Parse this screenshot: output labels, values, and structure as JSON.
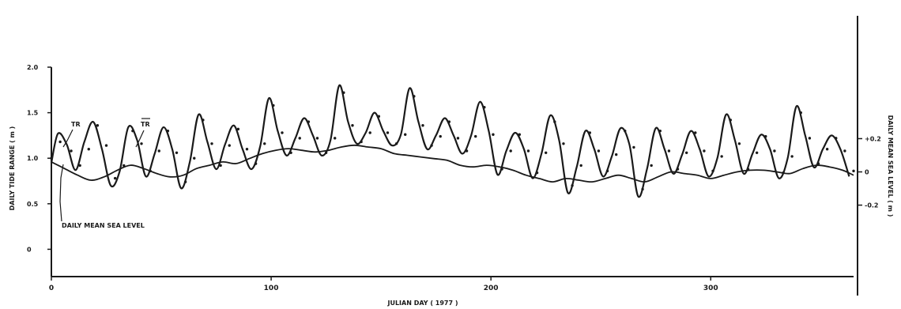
{
  "chart_data": {
    "type": "line",
    "title": "",
    "xlabel": "JULIAN DAY ( 1977 )",
    "ylabel_left": "DAILY TIDE RANGE ( m )",
    "ylabel_right": "DAILY MEAN SEA LEVEL ( m )",
    "xlim": [
      0,
      365
    ],
    "ylim_left": [
      -0.3,
      2.0
    ],
    "ylim_right": [
      -0.63,
      0.63
    ],
    "x_ticks": [
      0,
      100,
      200,
      300
    ],
    "x_tick_labels": [
      "0",
      "100",
      "200",
      "300"
    ],
    "y_left_ticks": [
      0,
      0.5,
      1.0,
      1.5,
      2.0
    ],
    "y_left_tick_labels": [
      "0",
      "0.5",
      "1.0",
      "1.5",
      "2.0"
    ],
    "y_right_ticks": [
      0.2,
      0,
      -0.2
    ],
    "y_right_tick_labels": [
      "+0.2",
      "0",
      "-0.2"
    ],
    "grid": false,
    "annotations": [
      {
        "text": "TR",
        "x": 4,
        "y": 1.4
      },
      {
        "text": "TR",
        "x": 40,
        "y": 1.4,
        "overline": true
      },
      {
        "text": "DAILY MEAN SEA LEVEL",
        "x": 8,
        "y": 0.47
      }
    ],
    "series": [
      {
        "name": "TR",
        "style": "solid",
        "axis": "left",
        "x": [
          0,
          3,
          7,
          11,
          15,
          19,
          23,
          27,
          31,
          35,
          39,
          43,
          47,
          51,
          55,
          59,
          63,
          67,
          71,
          75,
          79,
          83,
          87,
          91,
          95,
          99,
          103,
          107,
          111,
          115,
          119,
          123,
          127,
          131,
          135,
          139,
          143,
          147,
          151,
          155,
          159,
          163,
          167,
          171,
          175,
          179,
          183,
          187,
          191,
          195,
          199,
          203,
          207,
          211,
          215,
          219,
          223,
          227,
          231,
          235,
          239,
          243,
          247,
          251,
          255,
          259,
          263,
          267,
          271,
          275,
          279,
          283,
          287,
          291,
          295,
          299,
          303,
          307,
          311,
          315,
          319,
          323,
          327,
          331,
          335,
          339,
          343,
          347,
          351,
          355,
          359,
          363
        ],
        "y": [
          0.95,
          1.27,
          1.15,
          0.87,
          1.18,
          1.4,
          1.1,
          0.7,
          0.85,
          1.34,
          1.2,
          0.8,
          1.05,
          1.34,
          1.1,
          0.67,
          0.96,
          1.48,
          1.18,
          0.88,
          1.15,
          1.36,
          1.1,
          0.88,
          1.13,
          1.66,
          1.3,
          1.03,
          1.22,
          1.44,
          1.25,
          1.03,
          1.2,
          1.8,
          1.4,
          1.16,
          1.28,
          1.5,
          1.3,
          1.14,
          1.26,
          1.77,
          1.4,
          1.1,
          1.25,
          1.44,
          1.25,
          1.05,
          1.25,
          1.62,
          1.3,
          0.82,
          1.08,
          1.28,
          1.1,
          0.78,
          1.05,
          1.47,
          1.2,
          0.62,
          0.9,
          1.3,
          1.1,
          0.8,
          1.02,
          1.33,
          1.15,
          0.58,
          0.88,
          1.33,
          1.1,
          0.83,
          1.04,
          1.3,
          1.1,
          0.8,
          1.0,
          1.48,
          1.2,
          0.83,
          1.05,
          1.26,
          1.1,
          0.78,
          1.0,
          1.57,
          1.25,
          0.9,
          1.1,
          1.25,
          1.1,
          0.8
        ]
      },
      {
        "name": "TR (mean)",
        "style": "dotted",
        "axis": "left",
        "x": [
          0,
          4,
          9,
          13,
          17,
          21,
          25,
          29,
          33,
          37,
          41,
          45,
          49,
          53,
          57,
          61,
          65,
          69,
          73,
          77,
          81,
          85,
          89,
          93,
          97,
          101,
          105,
          109,
          113,
          117,
          121,
          125,
          129,
          133,
          137,
          141,
          145,
          149,
          153,
          157,
          161,
          165,
          169,
          173,
          177,
          181,
          185,
          189,
          193,
          197,
          201,
          205,
          209,
          213,
          217,
          221,
          225,
          229,
          233,
          237,
          241,
          245,
          249,
          253,
          257,
          261,
          265,
          269,
          273,
          277,
          281,
          285,
          289,
          293,
          297,
          301,
          305,
          309,
          313,
          317,
          321,
          325,
          329,
          333,
          337,
          341,
          345,
          349,
          353,
          357,
          361,
          365
        ],
        "y": [
          1.0,
          1.18,
          1.08,
          0.92,
          1.1,
          1.36,
          1.14,
          0.78,
          0.92,
          1.3,
          1.16,
          0.86,
          1.08,
          1.3,
          1.06,
          0.74,
          1.0,
          1.42,
          1.16,
          0.92,
          1.14,
          1.32,
          1.1,
          0.94,
          1.16,
          1.58,
          1.28,
          1.06,
          1.22,
          1.4,
          1.22,
          1.06,
          1.22,
          1.72,
          1.36,
          1.18,
          1.28,
          1.46,
          1.28,
          1.16,
          1.26,
          1.68,
          1.36,
          1.14,
          1.24,
          1.4,
          1.22,
          1.08,
          1.24,
          1.56,
          1.26,
          0.88,
          1.08,
          1.26,
          1.08,
          0.84,
          1.06,
          1.4,
          1.16,
          0.7,
          0.92,
          1.28,
          1.08,
          0.86,
          1.04,
          1.3,
          1.12,
          0.66,
          0.92,
          1.3,
          1.08,
          0.88,
          1.06,
          1.28,
          1.08,
          0.86,
          1.02,
          1.42,
          1.16,
          0.88,
          1.06,
          1.24,
          1.08,
          0.84,
          1.02,
          1.5,
          1.22,
          0.94,
          1.1,
          1.22,
          1.08,
          0.86
        ]
      },
      {
        "name": "DAILY MEAN SEA LEVEL",
        "style": "solid",
        "axis": "right",
        "x": [
          0,
          6,
          12,
          18,
          24,
          30,
          36,
          42,
          48,
          54,
          60,
          66,
          72,
          78,
          84,
          90,
          96,
          102,
          108,
          114,
          120,
          126,
          132,
          138,
          144,
          150,
          156,
          162,
          168,
          174,
          180,
          186,
          192,
          198,
          204,
          210,
          216,
          222,
          228,
          234,
          240,
          246,
          252,
          258,
          264,
          270,
          276,
          282,
          288,
          294,
          300,
          306,
          312,
          318,
          324,
          330,
          336,
          342,
          348,
          354,
          360,
          365
        ],
        "y": [
          0.06,
          0.02,
          -0.02,
          -0.05,
          -0.03,
          0.01,
          0.04,
          0.02,
          -0.01,
          -0.03,
          -0.02,
          0.02,
          0.04,
          0.06,
          0.05,
          0.08,
          0.11,
          0.13,
          0.14,
          0.13,
          0.12,
          0.13,
          0.15,
          0.16,
          0.15,
          0.14,
          0.11,
          0.1,
          0.09,
          0.08,
          0.07,
          0.04,
          0.03,
          0.04,
          0.03,
          0.01,
          -0.02,
          -0.04,
          -0.06,
          -0.04,
          -0.05,
          -0.06,
          -0.04,
          -0.02,
          -0.04,
          -0.06,
          -0.03,
          0.0,
          -0.01,
          -0.02,
          -0.04,
          -0.02,
          0.0,
          0.01,
          0.01,
          0.0,
          -0.01,
          0.02,
          0.04,
          0.03,
          0.01,
          -0.02
        ]
      }
    ]
  }
}
